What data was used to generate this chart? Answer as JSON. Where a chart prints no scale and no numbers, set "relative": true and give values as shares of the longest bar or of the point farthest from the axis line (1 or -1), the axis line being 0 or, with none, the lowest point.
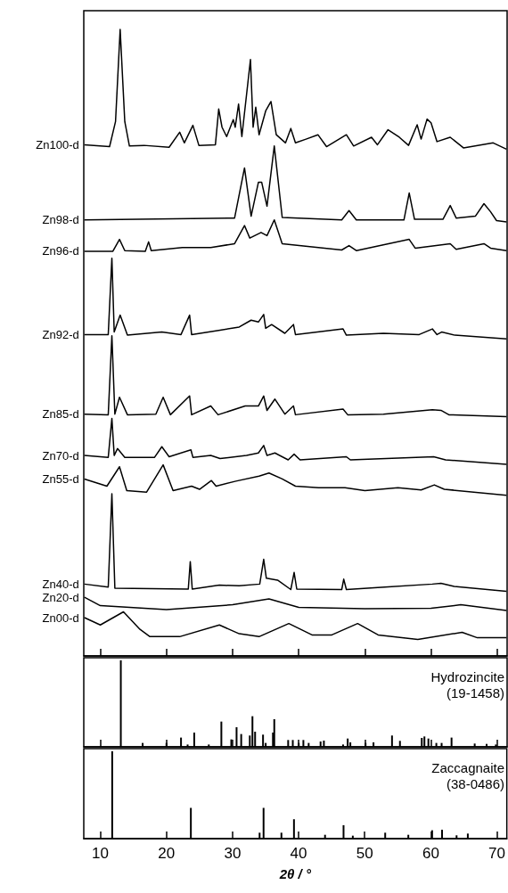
{
  "chart_data": [
    {
      "type": "line",
      "relative": true,
      "marker": "none",
      "xlim": [
        7.5,
        71.5
      ],
      "xticks": [
        10,
        20,
        30,
        40,
        50,
        60,
        70
      ],
      "tick_labels": false,
      "series": [
        {
          "name": "Zn100-d",
          "color": "#000000",
          "x": [
            7.6,
            11.4,
            12.3,
            13.0,
            13.7,
            14.4,
            16.6,
            20.4,
            22.0,
            22.7,
            24.0,
            24.9,
            27.4,
            27.9,
            28.4,
            29.1,
            30.1,
            30.4,
            30.9,
            31.4,
            32.7,
            33.1,
            33.5,
            34.0,
            35.0,
            35.8,
            36.6,
            38.0,
            38.8,
            39.5,
            41.1,
            42.9,
            44.2,
            47.2,
            48.3,
            51.0,
            51.9,
            53.5,
            55.2,
            56.6,
            57.9,
            58.5,
            59.4,
            60.0,
            60.9,
            62.9,
            64.9,
            69.4,
            71.4
          ],
          "values": [
            0.816,
            0.813,
            0.853,
            1.0,
            0.853,
            0.814,
            0.815,
            0.812,
            0.836,
            0.819,
            0.847,
            0.815,
            0.816,
            0.873,
            0.844,
            0.829,
            0.856,
            0.844,
            0.881,
            0.829,
            0.952,
            0.844,
            0.876,
            0.832,
            0.87,
            0.885,
            0.832,
            0.819,
            0.842,
            0.819,
            0.825,
            0.832,
            0.813,
            0.832,
            0.814,
            0.828,
            0.816,
            0.84,
            0.828,
            0.815,
            0.848,
            0.825,
            0.857,
            0.851,
            0.821,
            0.828,
            0.811,
            0.819,
            0.809
          ]
        },
        {
          "name": "Zn98-d",
          "color": "#000000",
          "x": [
            7.6,
            30.3,
            31.8,
            32.8,
            33.9,
            34.4,
            35.2,
            36.3,
            37.5,
            46.5,
            47.6,
            48.7,
            55.9,
            56.7,
            57.5,
            61.8,
            62.9,
            63.8,
            66.7,
            68.0,
            69.0,
            69.9,
            71.4
          ],
          "values": [
            0.696,
            0.699,
            0.779,
            0.702,
            0.756,
            0.756,
            0.718,
            0.814,
            0.7,
            0.696,
            0.711,
            0.696,
            0.696,
            0.739,
            0.697,
            0.697,
            0.719,
            0.699,
            0.702,
            0.722,
            0.709,
            0.695,
            0.693
          ]
        },
        {
          "name": "Zn96-d",
          "color": "#000000",
          "x": [
            7.6,
            11.9,
            12.9,
            13.7,
            16.8,
            17.3,
            17.7,
            22.4,
            26.7,
            30.3,
            31.8,
            32.6,
            34.3,
            35.2,
            36.3,
            37.5,
            46.5,
            47.6,
            48.7,
            56.7,
            57.6,
            62.9,
            63.8,
            68.0,
            69.0,
            71.4
          ],
          "values": [
            0.646,
            0.646,
            0.665,
            0.647,
            0.646,
            0.661,
            0.647,
            0.652,
            0.652,
            0.658,
            0.687,
            0.667,
            0.676,
            0.671,
            0.696,
            0.658,
            0.648,
            0.655,
            0.647,
            0.665,
            0.651,
            0.658,
            0.649,
            0.658,
            0.651,
            0.647
          ]
        },
        {
          "name": "Zn92-d",
          "color": "#000000",
          "x": [
            7.6,
            11.2,
            11.75,
            12.1,
            13.0,
            14.1,
            19.3,
            22.2,
            23.5,
            23.8,
            28.1,
            31.0,
            32.8,
            33.9,
            34.7,
            35.0,
            35.9,
            37.9,
            39.2,
            39.5,
            46.7,
            47.2,
            52.8,
            58.2,
            60.2,
            60.9,
            61.6,
            63.6,
            71.4
          ],
          "values": [
            0.513,
            0.513,
            0.635,
            0.517,
            0.544,
            0.512,
            0.517,
            0.513,
            0.544,
            0.513,
            0.52,
            0.525,
            0.536,
            0.533,
            0.545,
            0.523,
            0.529,
            0.515,
            0.529,
            0.513,
            0.522,
            0.512,
            0.515,
            0.513,
            0.522,
            0.513,
            0.517,
            0.512,
            0.506
          ]
        },
        {
          "name": "Zn85-d",
          "color": "#000000",
          "x": [
            7.6,
            11.2,
            11.75,
            12.2,
            12.9,
            14.1,
            18.4,
            19.5,
            20.6,
            23.5,
            23.8,
            26.7,
            27.8,
            31.9,
            33.9,
            34.7,
            35.2,
            36.4,
            37.9,
            39.2,
            39.5,
            46.7,
            47.4,
            52.8,
            60.2,
            61.5,
            62.7,
            71.4
          ],
          "values": [
            0.386,
            0.385,
            0.511,
            0.386,
            0.413,
            0.385,
            0.386,
            0.413,
            0.385,
            0.415,
            0.385,
            0.399,
            0.385,
            0.399,
            0.399,
            0.415,
            0.392,
            0.41,
            0.386,
            0.399,
            0.385,
            0.394,
            0.385,
            0.386,
            0.393,
            0.392,
            0.385,
            0.382
          ]
        },
        {
          "name": "Zn70-d",
          "color": "#000000",
          "x": [
            7.6,
            11.2,
            11.75,
            12.1,
            12.6,
            13.7,
            18.2,
            19.3,
            20.4,
            23.7,
            24.0,
            26.7,
            28.1,
            32.1,
            33.9,
            34.7,
            35.2,
            36.4,
            38.4,
            39.3,
            40.2,
            47.2,
            47.8,
            60.4,
            62.2,
            71.4
          ],
          "values": [
            0.32,
            0.317,
            0.379,
            0.32,
            0.331,
            0.317,
            0.317,
            0.334,
            0.318,
            0.329,
            0.317,
            0.32,
            0.315,
            0.32,
            0.324,
            0.336,
            0.32,
            0.324,
            0.313,
            0.322,
            0.313,
            0.318,
            0.313,
            0.318,
            0.313,
            0.306
          ]
        },
        {
          "name": "Zn55-d",
          "color": "#000000",
          "x": [
            7.6,
            11.0,
            12.9,
            14.0,
            17.0,
            19.5,
            21.0,
            23.8,
            25.0,
            26.8,
            27.5,
            30.5,
            34.0,
            35.5,
            37.5,
            39.5,
            43.0,
            47.0,
            50.0,
            55.0,
            58.5,
            60.5,
            62.0,
            71.4
          ],
          "values": [
            0.2825,
            0.271,
            0.302,
            0.264,
            0.2615,
            0.305,
            0.264,
            0.271,
            0.266,
            0.28,
            0.271,
            0.279,
            0.287,
            0.292,
            0.2825,
            0.271,
            0.2685,
            0.2685,
            0.264,
            0.2685,
            0.265,
            0.273,
            0.266,
            0.2565
          ]
        },
        {
          "name": "Zn40-d",
          "color": "#000000",
          "x": [
            7.6,
            11.2,
            11.75,
            12.2,
            23.3,
            23.6,
            23.9,
            28.0,
            31.0,
            34.1,
            34.7,
            35.1,
            36.8,
            38.8,
            39.3,
            39.7,
            46.5,
            46.8,
            47.2,
            53.0,
            60.2,
            61.5,
            63.5,
            71.4
          ],
          "values": [
            0.1147,
            0.11,
            0.259,
            0.108,
            0.1067,
            0.1506,
            0.1067,
            0.113,
            0.112,
            0.1147,
            0.1543,
            0.124,
            0.121,
            0.106,
            0.1333,
            0.1067,
            0.106,
            0.1226,
            0.106,
            0.11,
            0.1147,
            0.116,
            0.111,
            0.103
          ]
        },
        {
          "name": "Zn20-d",
          "color": "#000000",
          "x": [
            7.6,
            10.0,
            20.0,
            30.0,
            35.5,
            40.0,
            50.0,
            60.0,
            64.5,
            71.4
          ],
          "values": [
            0.0937,
            0.0803,
            0.0741,
            0.0817,
            0.0911,
            0.0774,
            0.0755,
            0.076,
            0.0817,
            0.0727
          ]
        },
        {
          "name": "Zn00-d",
          "color": "#000000",
          "x": [
            7.6,
            10.0,
            13.5,
            16.0,
            17.5,
            22.0,
            28.0,
            31.0,
            34.0,
            38.5,
            42.0,
            45.0,
            48.9,
            52.0,
            58.0,
            64.7,
            67.0,
            71.4
          ],
          "values": [
            0.0611,
            0.0494,
            0.0704,
            0.0424,
            0.0308,
            0.0308,
            0.0494,
            0.0354,
            0.0308,
            0.0517,
            0.0336,
            0.0336,
            0.0517,
            0.0336,
            0.0262,
            0.0378,
            0.029,
            0.029
          ]
        }
      ]
    },
    {
      "type": "bar",
      "relative": true,
      "xlim": [
        7.5,
        71.5
      ],
      "xticks": [
        10,
        20,
        30,
        40,
        50,
        60,
        70
      ],
      "tick_labels": false,
      "annotations": [
        "Hydrozincite",
        "(19-1458)"
      ],
      "series": [
        {
          "color": "#000000",
          "x": [
            13.1,
            15.4,
            16.4,
            20.0,
            22.2,
            23.2,
            24.2,
            26.4,
            28.3,
            29.8,
            30.6,
            31.3,
            32.6,
            33.0,
            33.4,
            34.6,
            35.0,
            36.1,
            36.3,
            38.4,
            39.1,
            40.0,
            40.7,
            41.5,
            43.3,
            43.8,
            46.7,
            47.4,
            47.8,
            50.1,
            51.3,
            54.1,
            55.3,
            58.6,
            59.0,
            59.6,
            60.8,
            61.6,
            63.1,
            66.6,
            68.4,
            69.8
          ],
          "values": [
            1.0,
            null,
            0.045,
            0.045,
            0.107,
            0.027,
            0.165,
            0.027,
            0.292,
            0.086,
            0.227,
            0.148,
            0.131,
            0.354,
            0.175,
            0.141,
            0.045,
            0.165,
            0.32,
            0.079,
            0.079,
            0.045,
            0.079,
            0.045,
            0.062,
            0.072,
            0.027,
            0.096,
            0.052,
            0.045,
            0.052,
            0.131,
            0.069,
            0.103,
            0.12,
            0.096,
            0.045,
            0.045,
            0.107,
            0.038,
            0.034,
            0.027
          ]
        }
      ]
    },
    {
      "type": "bar",
      "relative": true,
      "xlim": [
        7.5,
        71.5
      ],
      "xticks": [
        10,
        20,
        30,
        40,
        50,
        60,
        70
      ],
      "tick_labels": "x",
      "xlabel": "2θ / °",
      "annotations": [
        "Zaccagnaite",
        "(38-0486)"
      ],
      "series": [
        {
          "color": "#000000",
          "x": [
            11.8,
            23.7,
            34.1,
            34.7,
            37.4,
            39.3,
            44.0,
            46.8,
            48.2,
            53.1,
            56.6,
            60.2,
            61.7,
            63.9,
            65.6
          ],
          "values": [
            1.0,
            0.352,
            0.068,
            0.352,
            0.068,
            0.222,
            0.044,
            0.154,
            0.034,
            0.068,
            0.044,
            0.096,
            0.102,
            0.038,
            0.058
          ]
        }
      ]
    }
  ]
}
